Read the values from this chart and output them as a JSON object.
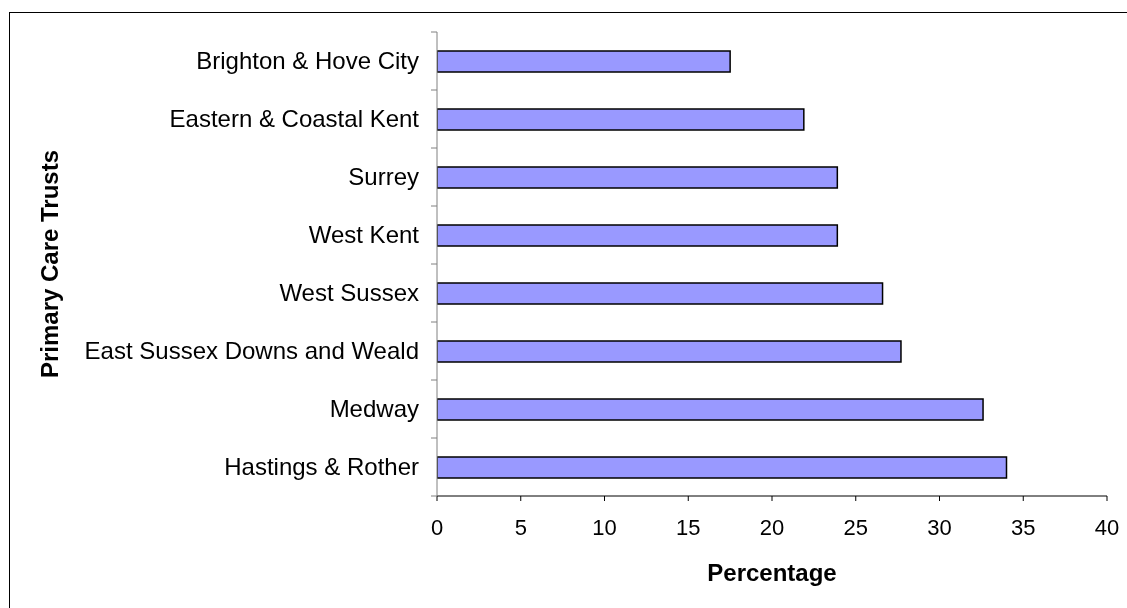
{
  "chart_data": {
    "type": "bar",
    "orientation": "horizontal",
    "xlabel": "Percentage",
    "ylabel": "Primary Care Trusts",
    "categories": [
      "Brighton & Hove City",
      "Eastern & Coastal Kent",
      "Surrey",
      "West Kent",
      "West Sussex",
      "East Sussex Downs and Weald",
      "Medway",
      "Hastings & Rother"
    ],
    "values": [
      17.5,
      21.9,
      23.9,
      23.9,
      26.6,
      27.7,
      32.6,
      34.0
    ],
    "color": "#9999ff",
    "xlim": [
      0,
      40
    ],
    "xticks": [
      0,
      5,
      10,
      15,
      20,
      25,
      30,
      35,
      40
    ]
  }
}
